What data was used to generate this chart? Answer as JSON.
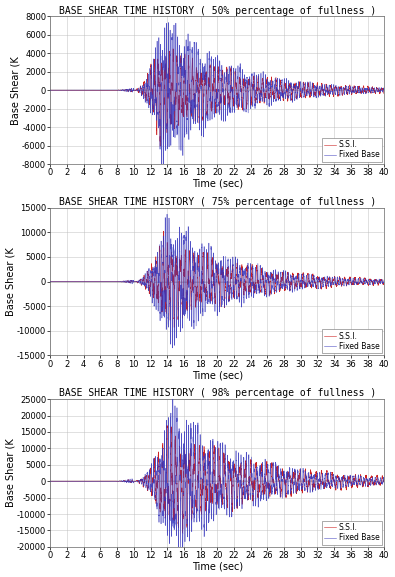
{
  "panels": [
    {
      "title": "BASE SHEAR TIME HISTORY ( 50% percentage of fullness )",
      "ylim": [
        -8000,
        8000
      ],
      "yticks": [
        -8000,
        -6000,
        -4000,
        -2000,
        0,
        2000,
        4000,
        6000,
        8000
      ],
      "fixed_base_scale": 5500,
      "ssi_scale": 3500,
      "fb_freq": 3.5,
      "ssi_freq": 1.8,
      "t_start_fb": 10.0,
      "t_start_ssi": 9.8,
      "t_peak_fb": 13.5,
      "t_peak_ssi": 13.0,
      "decay_fb": 0.13,
      "decay_ssi": 0.1
    },
    {
      "title": "BASE SHEAR TIME HISTORY ( 75% percentage of fullness )",
      "ylim": [
        -15000,
        15000
      ],
      "yticks": [
        -15000,
        -10000,
        -5000,
        0,
        5000,
        10000,
        15000
      ],
      "fixed_base_scale": 9000,
      "ssi_scale": 6000,
      "fb_freq": 3.2,
      "ssi_freq": 1.6,
      "t_start_fb": 10.0,
      "t_start_ssi": 9.8,
      "t_peak_fb": 14.0,
      "t_peak_ssi": 13.5,
      "decay_fb": 0.13,
      "decay_ssi": 0.1
    },
    {
      "title": "BASE SHEAR TIME HISTORY ( 98% percentage of fullness )",
      "ylim": [
        -20000,
        25000
      ],
      "yticks": [
        -20000,
        -15000,
        -10000,
        -5000,
        0,
        5000,
        10000,
        15000,
        20000,
        25000
      ],
      "fixed_base_scale": 16000,
      "ssi_scale": 11000,
      "fb_freq": 3.0,
      "ssi_freq": 1.5,
      "t_start_fb": 10.0,
      "t_start_ssi": 9.8,
      "t_peak_fb": 14.5,
      "t_peak_ssi": 14.0,
      "decay_fb": 0.12,
      "decay_ssi": 0.09
    }
  ],
  "xlim": [
    0,
    40
  ],
  "xticks": [
    0,
    2,
    4,
    6,
    8,
    10,
    12,
    14,
    16,
    18,
    20,
    22,
    24,
    26,
    28,
    30,
    32,
    34,
    36,
    38,
    40
  ],
  "xlabel": "Time (sec)",
  "ylabel": "Base Shear (K",
  "fixed_base_color": "#3333bb",
  "ssi_color": "#cc2222",
  "legend_fixed": "Fixed Base",
  "legend_ssi": "S.S.I.",
  "bg_color": "#ffffff",
  "grid_color": "#bbbbbb",
  "title_fontsize": 7.0,
  "axis_fontsize": 7.0,
  "tick_fontsize": 6.0
}
